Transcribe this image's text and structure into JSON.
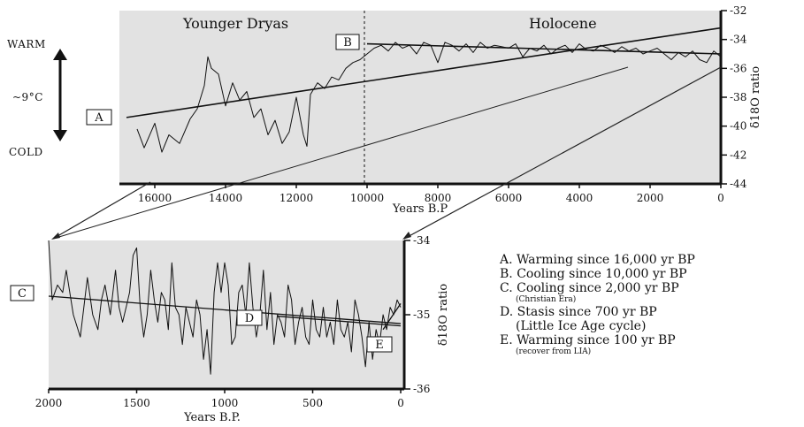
{
  "side_labels": {
    "warm": "WARM",
    "temp": "~9°C",
    "cold": "COLD"
  },
  "legend": {
    "a": "A. Warming since 16,000 yr BP",
    "b": "B. Cooling since 10,000 yr BP",
    "c": "C. Cooling since 2,000 yr BP",
    "c_note": "(Christian Era)",
    "d": "D. Stasis since 700 yr BP",
    "d_note": "(Little Ice Age cycle)",
    "e": "E. Warming since 100 yr BP",
    "e_note": "(recover from LIA)"
  },
  "colors": {
    "ink": "#111111",
    "plot_bg": "#e2e2e2",
    "paper": "#ffffff"
  },
  "chart_data": [
    {
      "type": "line",
      "xlabel": "Years B.P",
      "ylabel": "δ18O ratio",
      "x_reversed": true,
      "xlim": [
        17000,
        0
      ],
      "ylim": [
        -44,
        -32
      ],
      "x_ticks": [
        "16000",
        "14000",
        "12000",
        "10000",
        "8000",
        "6000",
        "4000",
        "2000",
        "0"
      ],
      "y_ticks": [
        "-32",
        "-34",
        "-36",
        "-38",
        "-40",
        "-42",
        "-44"
      ],
      "era_labels": [
        "Younger Dryas",
        "Holocene"
      ],
      "era_boundary_x": 10000,
      "series": [
        {
          "x": [
            16500,
            16300,
            16000,
            15800,
            15600,
            15300,
            15000,
            14800,
            14600,
            14500,
            14400,
            14200,
            14000,
            13800,
            13600,
            13400,
            13200,
            13000,
            12800,
            12600,
            12400,
            12200,
            12000,
            11800,
            11700,
            11600,
            11400,
            11200,
            11000,
            10800,
            10600,
            10400,
            10200,
            10000,
            9800,
            9600,
            9400,
            9200,
            9000,
            8800,
            8600,
            8400,
            8200,
            8000,
            7800,
            7600,
            7400,
            7200,
            7000,
            6800,
            6600,
            6400,
            6200,
            6000,
            5800,
            5600,
            5400,
            5200,
            5000,
            4800,
            4600,
            4400,
            4200,
            4000,
            3800,
            3600,
            3400,
            3200,
            3000,
            2800,
            2600,
            2400,
            2200,
            2000,
            1800,
            1600,
            1400,
            1200,
            1000,
            800,
            600,
            400,
            200,
            0
          ],
          "y": [
            -40.2,
            -41.5,
            -39.8,
            -41.8,
            -40.6,
            -41.2,
            -39.5,
            -38.8,
            -37.2,
            -35.2,
            -36.0,
            -36.4,
            -38.6,
            -37.0,
            -38.2,
            -37.6,
            -39.4,
            -38.8,
            -40.6,
            -39.6,
            -41.2,
            -40.4,
            -38.0,
            -40.6,
            -41.4,
            -37.8,
            -37.0,
            -37.4,
            -36.6,
            -36.8,
            -36.0,
            -35.6,
            -35.4,
            -35.0,
            -34.6,
            -34.4,
            -34.8,
            -34.2,
            -34.6,
            -34.4,
            -35.0,
            -34.2,
            -34.4,
            -35.6,
            -34.2,
            -34.4,
            -34.8,
            -34.3,
            -34.9,
            -34.2,
            -34.6,
            -34.4,
            -34.5,
            -34.6,
            -34.3,
            -35.2,
            -34.6,
            -34.8,
            -34.4,
            -35.0,
            -34.6,
            -34.4,
            -34.9,
            -34.3,
            -34.7,
            -34.8,
            -34.4,
            -34.6,
            -34.9,
            -34.5,
            -34.8,
            -34.6,
            -35.0,
            -34.8,
            -34.6,
            -35.0,
            -35.4,
            -34.9,
            -35.2,
            -34.8,
            -35.4,
            -35.6,
            -34.8,
            -35.2
          ]
        }
      ],
      "trend_lines": [
        {
          "label": "A",
          "x": [
            16800,
            0
          ],
          "y": [
            -39.4,
            -33.2
          ]
        },
        {
          "label": "B",
          "x": [
            10000,
            0
          ],
          "y": [
            -34.3,
            -35.0
          ]
        }
      ]
    },
    {
      "type": "line",
      "xlabel": "Years B.P.",
      "ylabel": "δ18O ratio",
      "x_reversed": true,
      "xlim": [
        2000,
        -20
      ],
      "ylim": [
        -36,
        -34
      ],
      "x_ticks": [
        "2000",
        "1500",
        "1000",
        "500",
        "0"
      ],
      "y_ticks": [
        "-34",
        "-35",
        "-36"
      ],
      "series": [
        {
          "x": [
            2000,
            1980,
            1950,
            1920,
            1900,
            1860,
            1820,
            1800,
            1780,
            1750,
            1720,
            1700,
            1680,
            1650,
            1620,
            1600,
            1580,
            1560,
            1540,
            1520,
            1500,
            1480,
            1460,
            1440,
            1420,
            1400,
            1380,
            1360,
            1340,
            1320,
            1300,
            1280,
            1260,
            1240,
            1220,
            1200,
            1180,
            1160,
            1140,
            1120,
            1100,
            1080,
            1060,
            1040,
            1020,
            1000,
            980,
            960,
            940,
            920,
            900,
            880,
            860,
            840,
            820,
            800,
            780,
            760,
            740,
            720,
            700,
            680,
            660,
            640,
            620,
            600,
            580,
            560,
            540,
            520,
            500,
            480,
            460,
            440,
            420,
            400,
            380,
            360,
            340,
            320,
            300,
            280,
            260,
            240,
            220,
            200,
            180,
            160,
            140,
            120,
            100,
            80,
            60,
            40,
            20,
            0
          ],
          "y": [
            -34.0,
            -34.8,
            -34.6,
            -34.7,
            -34.4,
            -35.0,
            -35.3,
            -34.9,
            -34.5,
            -35.0,
            -35.2,
            -34.8,
            -34.6,
            -35.0,
            -34.4,
            -34.9,
            -35.1,
            -34.9,
            -34.7,
            -34.2,
            -34.1,
            -34.9,
            -35.3,
            -35.0,
            -34.4,
            -34.8,
            -35.1,
            -34.7,
            -34.8,
            -35.2,
            -34.3,
            -34.9,
            -35.0,
            -35.4,
            -34.9,
            -35.1,
            -35.3,
            -34.8,
            -35.0,
            -35.6,
            -35.2,
            -35.8,
            -34.7,
            -34.3,
            -34.7,
            -34.3,
            -34.6,
            -35.4,
            -35.3,
            -34.7,
            -34.6,
            -35.0,
            -34.3,
            -34.9,
            -35.3,
            -35.0,
            -34.4,
            -35.2,
            -34.7,
            -35.4,
            -35.0,
            -35.1,
            -35.3,
            -34.6,
            -34.8,
            -35.4,
            -35.1,
            -34.9,
            -35.3,
            -35.4,
            -34.8,
            -35.2,
            -35.3,
            -34.9,
            -35.3,
            -35.1,
            -35.4,
            -34.8,
            -35.2,
            -35.3,
            -35.1,
            -35.5,
            -34.8,
            -35.0,
            -35.3,
            -35.7,
            -35.1,
            -35.6,
            -35.2,
            -35.4,
            -35.0,
            -35.2,
            -34.9,
            -35.0,
            -34.8,
            -34.9
          ]
        }
      ],
      "trend_lines": [
        {
          "label": "C",
          "x": [
            2000,
            0
          ],
          "y": [
            -34.75,
            -35.12
          ]
        },
        {
          "label": "D",
          "x": [
            700,
            0
          ],
          "y": [
            -35.02,
            -35.15
          ]
        },
        {
          "label": "E",
          "x": [
            100,
            0
          ],
          "y": [
            -35.2,
            -34.85
          ]
        }
      ]
    }
  ]
}
